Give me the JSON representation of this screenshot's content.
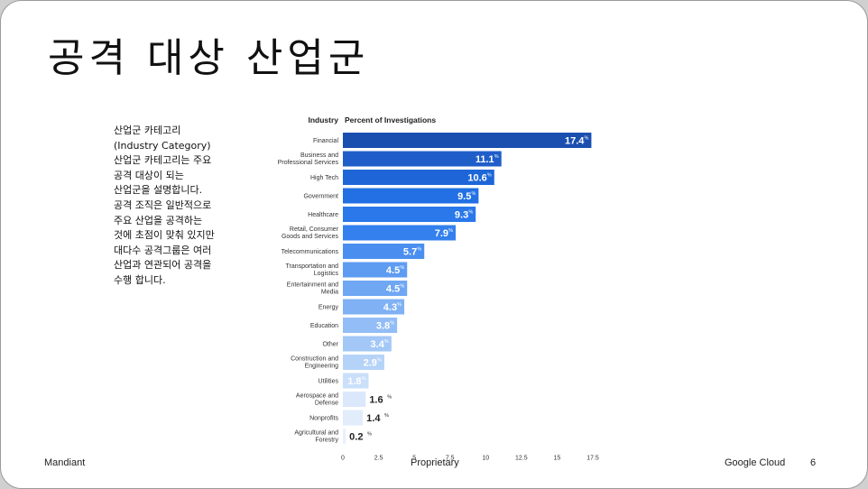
{
  "slide": {
    "title": "공격 대상 산업군",
    "description": [
      "산업군 카테고리",
      "(Industry Category)",
      "산업군 카테고리는 주요",
      "공격 대상이 되는",
      "산업군을 설명합니다.",
      "공격 조직은 일반적으로",
      "주요 산업을 공격하는",
      "것에 초점이 맞춰 있지만",
      "대다수 공격그룹은 여러",
      "산업과 연관되어 공격을",
      "수행 합니다."
    ]
  },
  "footer": {
    "left": "Mandiant",
    "center": "Proprietary",
    "brand": "Google Cloud",
    "page": "6"
  },
  "chart_data": {
    "type": "bar",
    "orientation": "horizontal",
    "category_header": "Industry",
    "value_header": "Percent of Investigations",
    "categories": [
      [
        "Financial"
      ],
      [
        "Business and",
        "Professional Services"
      ],
      [
        "High Tech"
      ],
      [
        "Government"
      ],
      [
        "Healthcare"
      ],
      [
        "Retail, Consumer",
        "Goods and Services"
      ],
      [
        "Telecommunications"
      ],
      [
        "Transportation and",
        "Logistics"
      ],
      [
        "Entertainment and",
        "Media"
      ],
      [
        "Energy"
      ],
      [
        "Education"
      ],
      [
        "Other"
      ],
      [
        "Construction and",
        "Engineering"
      ],
      [
        "Utilities"
      ],
      [
        "Aerospace and",
        "Defense"
      ],
      [
        "Nonprofits"
      ],
      [
        "Agricultural and",
        "Forestry"
      ]
    ],
    "values": [
      17.4,
      11.1,
      10.6,
      9.5,
      9.3,
      7.9,
      5.7,
      4.5,
      4.5,
      4.3,
      3.8,
      3.4,
      2.9,
      1.8,
      1.6,
      1.4,
      0.2
    ],
    "value_labels": [
      "17.4",
      "11.1",
      "10.6",
      "9.5",
      "9.3",
      "7.9",
      "5.7",
      "4.5",
      "4.5",
      "4.3",
      "3.8",
      "3.4",
      "2.9",
      "1.8",
      "1.6",
      "1.4",
      "0.2"
    ],
    "value_unit": "%",
    "xlim": [
      0,
      17.5
    ],
    "xticks": [
      "0",
      "2.5",
      "5",
      "7.5",
      "10",
      "12.5",
      "15",
      "17.5"
    ],
    "colors": [
      "#1a4fb0",
      "#1f5ec9",
      "#1e66d8",
      "#2270e4",
      "#2a78ea",
      "#3380ee",
      "#4a8ff0",
      "#5e9cf2",
      "#6fa7f3",
      "#7fb1f4",
      "#92bdf6",
      "#a3c8f7",
      "#b5d3f8",
      "#cadff9",
      "#dbe8fb",
      "#e2edfb",
      "#eaf1fc"
    ],
    "grid": false
  }
}
